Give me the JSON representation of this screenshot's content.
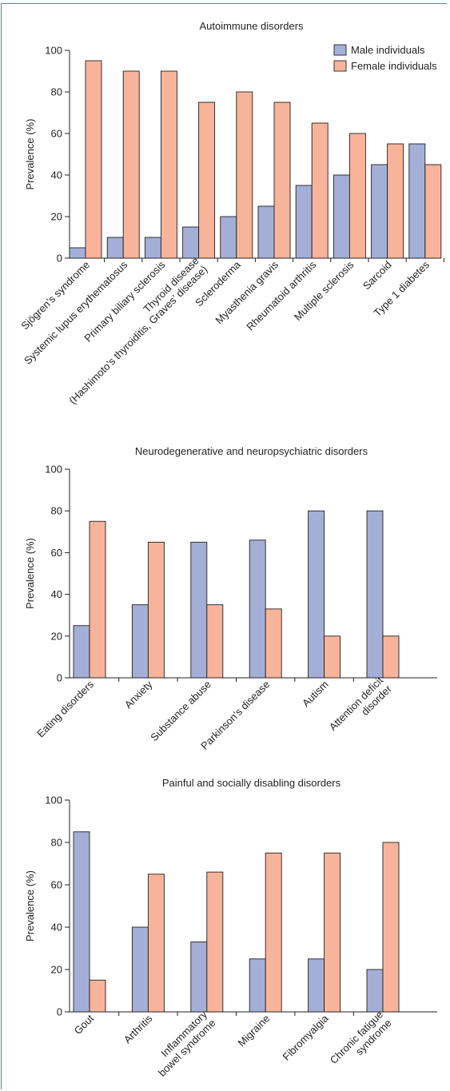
{
  "colors": {
    "male": "#a3afd6",
    "female": "#f7b49a",
    "frame": "#2f9b8f",
    "ink": "#231f20"
  },
  "legend": {
    "male": "Male individuals",
    "female": "Female individuals",
    "placement": "top-right of first panel"
  },
  "chart_data": [
    {
      "type": "bar",
      "title": "Autoimmune disorders",
      "ylabel": "Prevalence (%)",
      "ylim": [
        0,
        100
      ],
      "yticks": [
        "0",
        "20",
        "40",
        "60",
        "80",
        "100"
      ],
      "categories": [
        [
          "Sjögren’s syndrome"
        ],
        [
          "Systemic lupus erythematosus"
        ],
        [
          "Primary biliary sclerosis"
        ],
        [
          "Thyroid disease",
          "(Hashimoto’s thyroiditis, Graves’ disease)"
        ],
        [
          "Scleroderma"
        ],
        [
          "Myasthenia gravis"
        ],
        [
          "Rheumatoid arthritis"
        ],
        [
          "Multiple sclerosis"
        ],
        [
          "Sarcoid"
        ],
        [
          "Type 1 diabetes"
        ]
      ],
      "series": [
        {
          "name": "Male individuals",
          "values": [
            5,
            10,
            10,
            15,
            20,
            25,
            35,
            40,
            45,
            55
          ]
        },
        {
          "name": "Female individuals",
          "values": [
            95,
            90,
            90,
            75,
            80,
            75,
            65,
            60,
            55,
            45
          ]
        }
      ],
      "grid": false,
      "legend": true
    },
    {
      "type": "bar",
      "title": "Neurodegenerative and neuropsychiatric disorders",
      "ylabel": "Prevalence (%)",
      "ylim": [
        0,
        100
      ],
      "yticks": [
        "0",
        "20",
        "40",
        "60",
        "80",
        "100"
      ],
      "categories": [
        [
          "Eating disorders"
        ],
        [
          "Anxiety"
        ],
        [
          "Substance abuse"
        ],
        [
          "Parkinson’s disease"
        ],
        [
          "Autism"
        ],
        [
          "Attention deficit",
          "disorder"
        ]
      ],
      "series": [
        {
          "name": "Male individuals",
          "values": [
            25,
            35,
            65,
            66,
            80,
            80
          ]
        },
        {
          "name": "Female individuals",
          "values": [
            75,
            65,
            35,
            33,
            20,
            20
          ]
        }
      ],
      "grid": false,
      "legend": false
    },
    {
      "type": "bar",
      "title": "Painful and socially disabling disorders",
      "ylabel": "Prevalence (%)",
      "ylim": [
        0,
        100
      ],
      "yticks": [
        "0",
        "20",
        "40",
        "60",
        "80",
        "100"
      ],
      "categories": [
        [
          "Gout"
        ],
        [
          "Arthritis"
        ],
        [
          "Inflammatory",
          "bowel syndrome"
        ],
        [
          "Migraine"
        ],
        [
          "Fibromyalgia"
        ],
        [
          "Chronic fatigue",
          "syndrome"
        ]
      ],
      "series": [
        {
          "name": "Male individuals",
          "values": [
            85,
            40,
            33,
            25,
            25,
            20
          ]
        },
        {
          "name": "Female individuals",
          "values": [
            15,
            65,
            66,
            75,
            75,
            80
          ]
        }
      ],
      "grid": false,
      "legend": false
    }
  ]
}
